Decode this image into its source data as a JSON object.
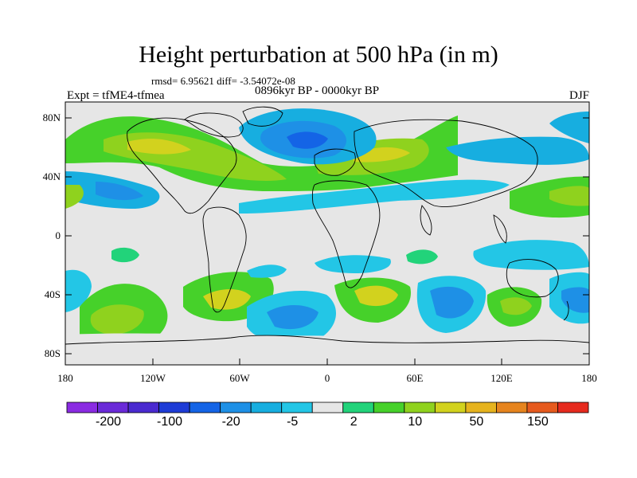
{
  "header": {
    "title": "Height perturbation at 500 hPa (in m)",
    "stats": "rmsd= 6.95621 diff= -3.54072e-08",
    "experiment": "Expt = tfME4-tfmea",
    "period": "0896kyr BP - 0000kyr BP",
    "season": "DJF"
  },
  "map": {
    "lat_ticks": [
      "80N",
      "40N",
      "0",
      "40S",
      "80S"
    ],
    "lon_ticks": [
      "180",
      "120W",
      "60W",
      "0",
      "60E",
      "120E",
      "180"
    ],
    "background_color": "#e6e6e6"
  },
  "colorbar": {
    "labels": [
      "-200",
      "-100",
      "-20",
      "-5",
      "2",
      "10",
      "50",
      "150"
    ],
    "colors": [
      "#8a2be2",
      "#6a2ad8",
      "#4a2ad0",
      "#1e3cd6",
      "#1464e6",
      "#1e90e6",
      "#17aee0",
      "#23c6e6",
      "#e6e6e6",
      "#22d37a",
      "#46d12a",
      "#8fd21e",
      "#d2d21e",
      "#e6b31e",
      "#e6841e",
      "#e65a1e",
      "#e62a1e"
    ]
  }
}
